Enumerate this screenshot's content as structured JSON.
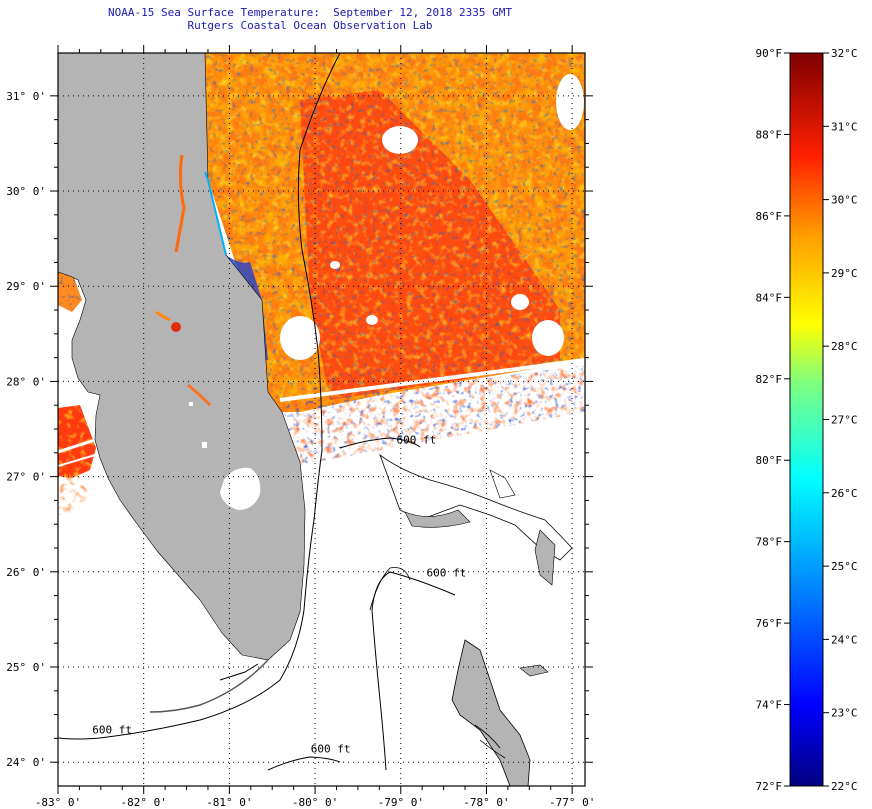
{
  "title": {
    "line1": "NOAA-15 Sea Surface Temperature:  September 12, 2018 2335 GMT",
    "line2": "Rutgers Coastal Ocean Observation Lab"
  },
  "map": {
    "lat_ticks": [
      "31° 0'",
      "30° 0'",
      "29° 0'",
      "28° 0'",
      "27° 0'",
      "26° 0'",
      "25° 0'",
      "24° 0'"
    ],
    "lon_ticks": [
      "-83° 0'",
      "-82° 0'",
      "-81° 0'",
      "-80° 0'",
      "-79° 0'",
      "-78° 0'",
      "-77° 0'"
    ],
    "lat_range": [
      23.75,
      31.45
    ],
    "lon_range": [
      -83.0,
      -76.85
    ],
    "isobath_label": "600 ft",
    "isobath_labels": [
      {
        "text": "600 ft",
        "lon": -79.05,
        "lat": 27.35
      },
      {
        "text": "600 ft",
        "lon": -78.7,
        "lat": 25.95
      },
      {
        "text": "600 ft",
        "lon": -82.6,
        "lat": 24.3
      },
      {
        "text": "600 ft",
        "lon": -80.05,
        "lat": 24.1
      }
    ],
    "colors": {
      "land": "#b4b4b4",
      "no_data": "#ffffff",
      "sst_dominant": "#ff5a10",
      "border": "#000000"
    }
  },
  "colorbar": {
    "f_labels": [
      "90°F",
      "88°F",
      "86°F",
      "84°F",
      "82°F",
      "80°F",
      "78°F",
      "76°F",
      "74°F",
      "72°F"
    ],
    "c_labels": [
      "32°C",
      "31°C",
      "30°C",
      "29°C",
      "28°C",
      "27°C",
      "26°C",
      "25°C",
      "24°C",
      "23°C",
      "22°C"
    ],
    "f_range": [
      72,
      90
    ],
    "c_range": [
      22,
      32
    ],
    "colors": [
      "#00007f",
      "#0000ff",
      "#007fff",
      "#00ffff",
      "#7fff7f",
      "#ffff00",
      "#ff7f00",
      "#ff0000",
      "#7f0000"
    ]
  }
}
